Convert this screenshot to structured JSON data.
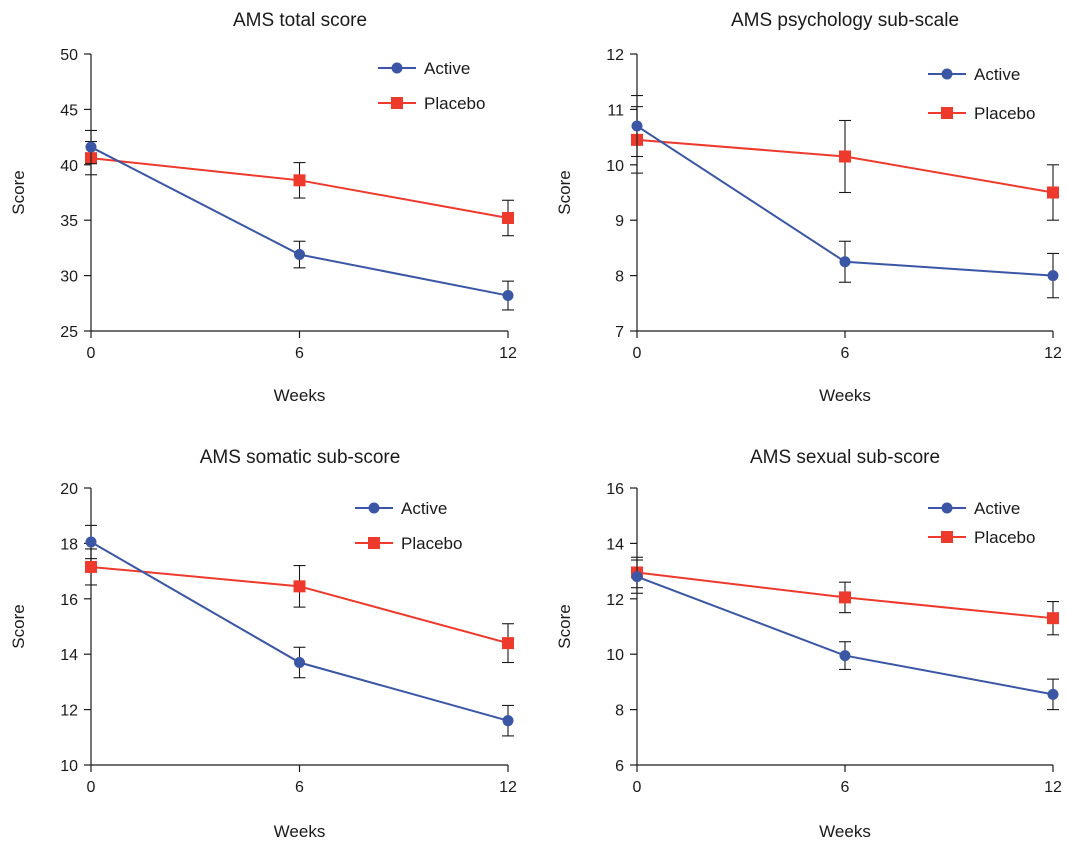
{
  "colors": {
    "active": "#3a56a5",
    "placebo": "#ee3a2d",
    "axis": "#1a1a1a"
  },
  "chart_data": [
    {
      "type": "line",
      "title": "AMS total score",
      "xlabel": "Weeks",
      "ylabel": "Score",
      "x": [
        0,
        6,
        12
      ],
      "xticks": [
        "0",
        "6",
        "12"
      ],
      "ylim": [
        25,
        50
      ],
      "yticks": [
        "25",
        "30",
        "35",
        "40",
        "45",
        "50"
      ],
      "legend_position": "top-right",
      "series": [
        {
          "name": "Active",
          "marker": "circle",
          "values": [
            41.6,
            31.9,
            28.2
          ],
          "errors": [
            1.5,
            1.2,
            1.3
          ]
        },
        {
          "name": "Placebo",
          "marker": "square",
          "values": [
            40.6,
            38.6,
            35.2
          ],
          "errors": [
            1.5,
            1.6,
            1.6
          ]
        }
      ]
    },
    {
      "type": "line",
      "title": "AMS psychology sub-scale",
      "xlabel": "Weeks",
      "ylabel": "Score",
      "x": [
        0,
        6,
        12
      ],
      "xticks": [
        "0",
        "6",
        "12"
      ],
      "ylim": [
        7,
        12
      ],
      "yticks": [
        "7",
        "8",
        "9",
        "10",
        "11",
        "12"
      ],
      "legend_position": "top-right",
      "series": [
        {
          "name": "Active",
          "marker": "circle",
          "values": [
            10.7,
            8.25,
            8.0
          ],
          "errors": [
            0.55,
            0.37,
            0.4
          ]
        },
        {
          "name": "Placebo",
          "marker": "square",
          "values": [
            10.45,
            10.15,
            9.5
          ],
          "errors": [
            0.6,
            0.65,
            0.5
          ]
        }
      ]
    },
    {
      "type": "line",
      "title": "AMS somatic sub-score",
      "xlabel": "Weeks",
      "ylabel": "Score",
      "x": [
        0,
        6,
        12
      ],
      "xticks": [
        "0",
        "6",
        "12"
      ],
      "ylim": [
        10,
        20
      ],
      "yticks": [
        "10",
        "12",
        "14",
        "16",
        "18",
        "20"
      ],
      "legend_position": "top-right",
      "series": [
        {
          "name": "Active",
          "marker": "circle",
          "values": [
            18.05,
            13.7,
            11.6
          ],
          "errors": [
            0.6,
            0.55,
            0.55
          ]
        },
        {
          "name": "Placebo",
          "marker": "square",
          "values": [
            17.15,
            16.45,
            14.4
          ],
          "errors": [
            0.65,
            0.75,
            0.7
          ]
        }
      ]
    },
    {
      "type": "line",
      "title": "AMS sexual sub-score",
      "xlabel": "Weeks",
      "ylabel": "Score",
      "x": [
        0,
        6,
        12
      ],
      "xticks": [
        "0",
        "6",
        "12"
      ],
      "ylim": [
        6,
        16
      ],
      "yticks": [
        "6",
        "8",
        "10",
        "12",
        "14",
        "16"
      ],
      "legend_position": "top-right",
      "series": [
        {
          "name": "Active",
          "marker": "circle",
          "values": [
            12.8,
            9.95,
            8.55
          ],
          "errors": [
            0.6,
            0.5,
            0.55
          ]
        },
        {
          "name": "Placebo",
          "marker": "square",
          "values": [
            12.95,
            12.05,
            11.3
          ],
          "errors": [
            0.55,
            0.55,
            0.6
          ]
        }
      ]
    }
  ]
}
